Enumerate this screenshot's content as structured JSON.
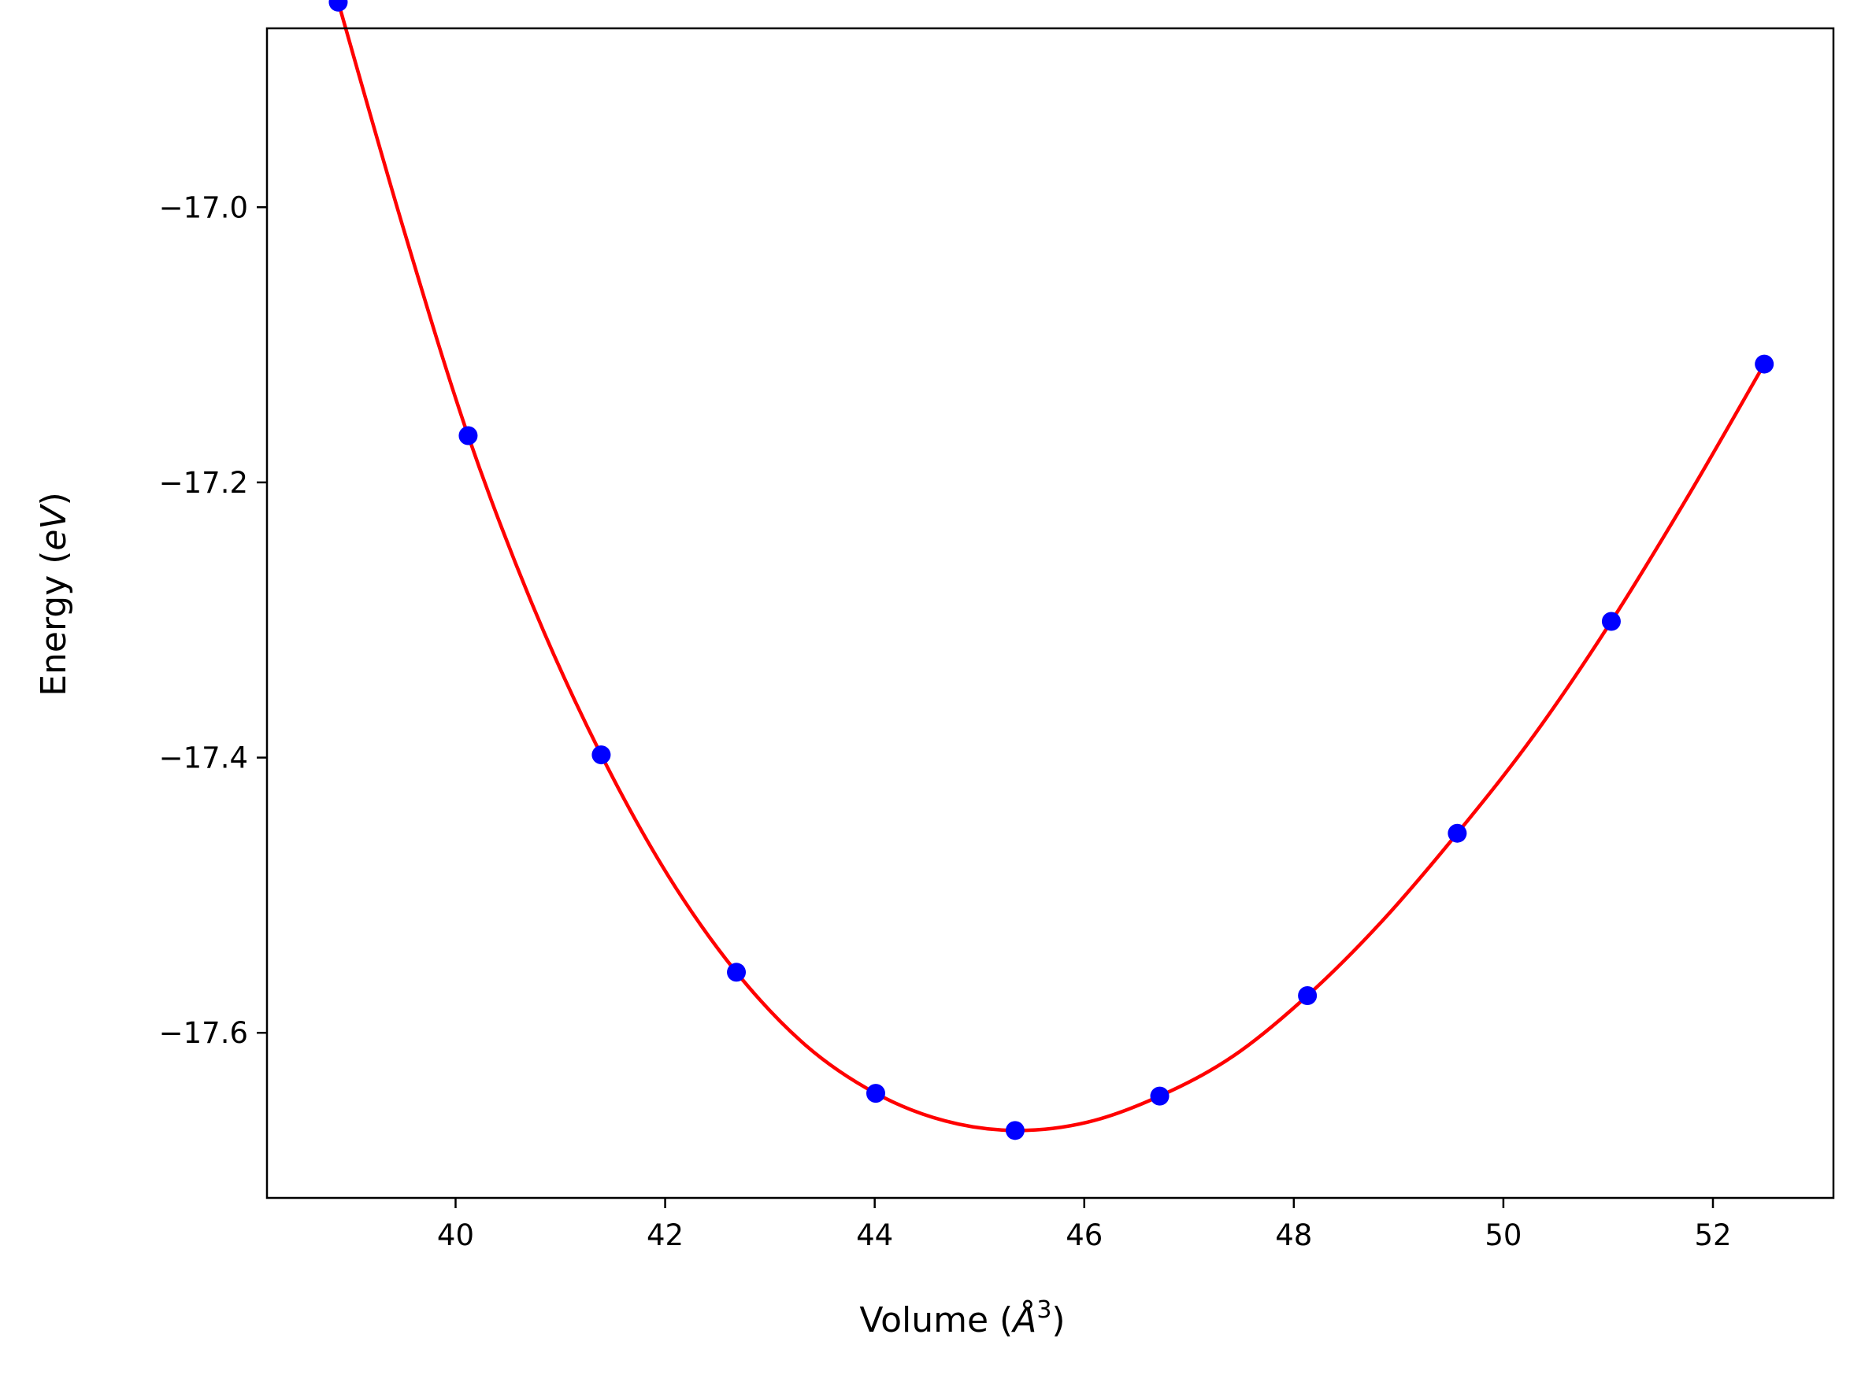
{
  "chart_data": {
    "type": "line",
    "title": "",
    "xlabel": "Volume",
    "xlabel_unit_base": "Å",
    "xlabel_unit_exp": "3",
    "ylabel": "Energy",
    "ylabel_unit": "eV",
    "xlim": [
      38.2,
      53.15
    ],
    "ylim": [
      -17.72,
      -16.87
    ],
    "xticks": [
      40,
      42,
      44,
      46,
      48,
      50,
      52
    ],
    "xtick_labels": [
      "40",
      "42",
      "44",
      "46",
      "48",
      "50",
      "52"
    ],
    "yticks": [
      -17.0,
      -17.2,
      -17.4,
      -17.6
    ],
    "ytick_labels": [
      "−17.0",
      "−17.2",
      "−17.4",
      "−17.6"
    ],
    "grid": false,
    "legend": "none",
    "fit": {
      "color": "#ff0000",
      "x": [
        38.88,
        39.5,
        40.12,
        40.75,
        41.39,
        42.03,
        42.68,
        43.34,
        44.01,
        44.67,
        45.34,
        46.03,
        46.72,
        47.42,
        48.13,
        48.84,
        49.56,
        50.29,
        51.03,
        51.77,
        52.49
      ],
      "y": [
        -16.851,
        -17.015,
        -17.166,
        -17.292,
        -17.398,
        -17.486,
        -17.556,
        -17.609,
        -17.644,
        -17.664,
        -17.671,
        -17.665,
        -17.646,
        -17.617,
        -17.573,
        -17.519,
        -17.455,
        -17.384,
        -17.301,
        -17.209,
        -17.114
      ]
    },
    "points": {
      "color": "#0000ff",
      "x": [
        38.88,
        40.12,
        41.39,
        42.68,
        44.01,
        45.34,
        46.72,
        48.13,
        49.56,
        51.03,
        52.49
      ],
      "y": [
        -16.851,
        -17.166,
        -17.398,
        -17.556,
        -17.644,
        -17.671,
        -17.646,
        -17.573,
        -17.455,
        -17.301,
        -17.114
      ]
    }
  }
}
